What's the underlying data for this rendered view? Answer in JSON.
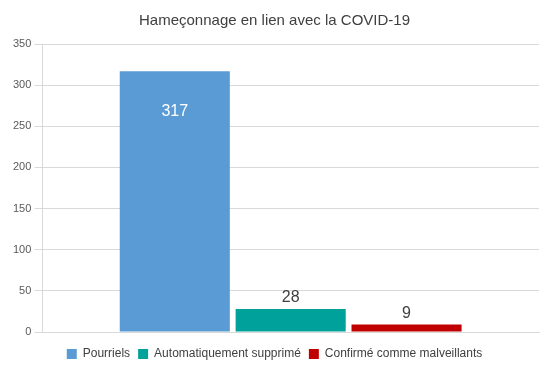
{
  "chart_data": {
    "type": "bar",
    "title": "Hameçonnage en lien avec la COVID-19",
    "categories": [
      null
    ],
    "series": [
      {
        "name": "Pourriels",
        "color": "#5b9bd5",
        "values": [
          317
        ]
      },
      {
        "name": "Automatiquement supprimé",
        "color": "#00a19a",
        "values": [
          28
        ]
      },
      {
        "name": "Confirmé comme malveillants",
        "color": "#c00000",
        "values": [
          9
        ]
      }
    ],
    "ylim": [
      0,
      350
    ],
    "yticks": [
      0,
      50,
      100,
      150,
      200,
      250,
      300,
      350
    ],
    "grid": true,
    "legend": "bottom",
    "data_labels": true,
    "tick_labels": "y"
  }
}
